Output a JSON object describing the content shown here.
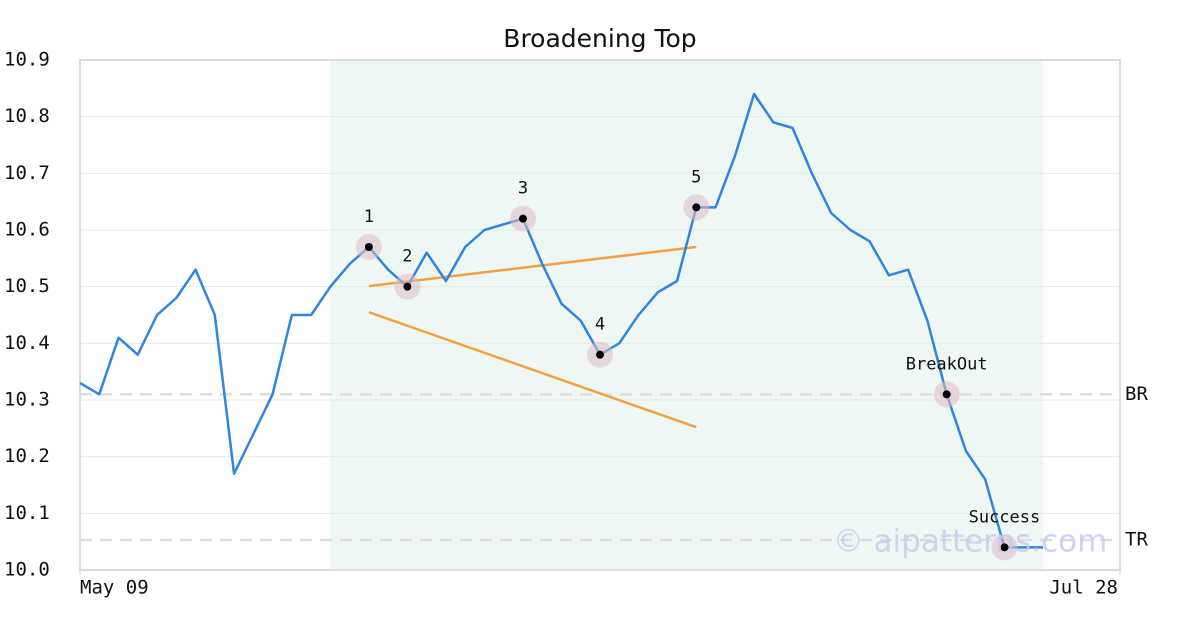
{
  "chart_data": {
    "type": "line",
    "title": "Broadening Top",
    "x": [
      0,
      1,
      2,
      3,
      4,
      5,
      6,
      7,
      8,
      9,
      10,
      11,
      12,
      13,
      14,
      15,
      16,
      17,
      18,
      19,
      20,
      21,
      22,
      23,
      24,
      25,
      26,
      27,
      28,
      29,
      30,
      31,
      32,
      33,
      34,
      35,
      36,
      37,
      38,
      39,
      40,
      41,
      42,
      43,
      44,
      45,
      46,
      47,
      48,
      49,
      50
    ],
    "xlim": [
      0,
      54
    ],
    "xticks": [
      {
        "value": 0,
        "label": "May 09"
      },
      {
        "value": 54,
        "label": "Jul 28"
      }
    ],
    "ylim": [
      10.0,
      10.9
    ],
    "yticks": [
      {
        "value": 10,
        "label": "10.0"
      },
      10.1,
      10.2,
      10.3,
      10.4,
      10.5,
      10.6,
      10.7,
      10.8,
      10.9
    ],
    "grid": true,
    "series": [
      {
        "color": "#2e86de",
        "values": [
          10.33,
          10.31,
          10.41,
          10.38,
          10.45,
          10.48,
          10.53,
          10.45,
          10.17,
          10.24,
          10.31,
          10.45,
          10.45,
          10.5,
          10.54,
          10.57,
          10.53,
          10.5,
          10.56,
          10.51,
          10.57,
          10.6,
          10.61,
          10.62,
          10.54,
          10.47,
          10.44,
          10.38,
          10.4,
          10.45,
          10.49,
          10.51,
          10.64,
          10.64,
          10.73,
          10.84,
          10.79,
          10.78,
          10.7,
          10.63,
          10.6,
          10.58,
          10.52,
          10.53,
          10.44,
          10.31,
          10.21,
          10.16,
          10.04,
          10.04,
          10.04
        ]
      }
    ],
    "highlight_range": [
      13,
      50
    ],
    "highlight_color": "#eef7f3",
    "levels": [
      {
        "label": "BR",
        "value": 10.31
      },
      {
        "label": "TR",
        "value": 10.053
      }
    ],
    "trendlines": [
      {
        "color": "#f5a040",
        "x": [
          15,
          32
        ],
        "values": [
          10.501,
          10.57
        ]
      },
      {
        "color": "#f5a040",
        "x": [
          15,
          32
        ],
        "values": [
          10.455,
          10.252
        ]
      }
    ],
    "markers": [
      {
        "label": "1",
        "x": 15,
        "value": 10.57
      },
      {
        "label": "2",
        "x": 17,
        "value": 10.5
      },
      {
        "label": "3",
        "x": 23,
        "value": 10.62
      },
      {
        "label": "4",
        "x": 27,
        "value": 10.38
      },
      {
        "label": "5",
        "x": 32,
        "value": 10.64
      },
      {
        "label": "BreakOut",
        "x": 45,
        "value": 10.31
      },
      {
        "label": "Success",
        "x": 48,
        "value": 10.04
      }
    ],
    "watermark": "© aipatterns.com"
  }
}
